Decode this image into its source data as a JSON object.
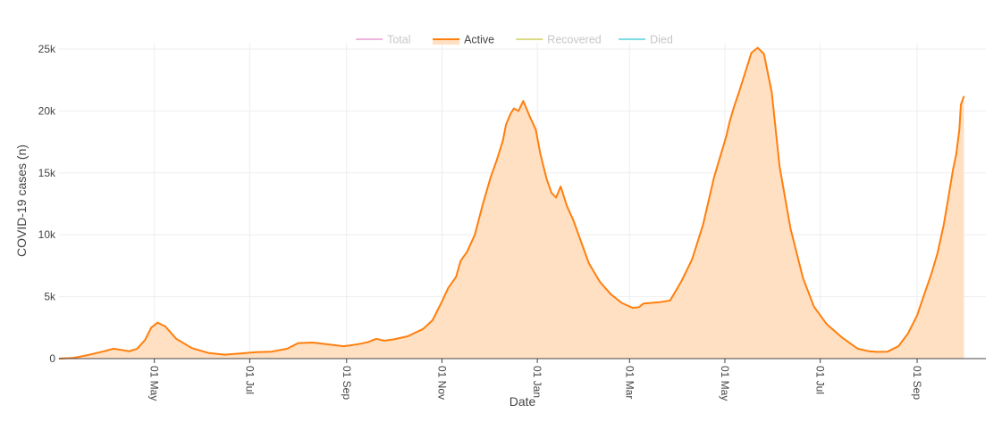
{
  "chart_data": {
    "type": "area",
    "xlabel": "Date",
    "ylabel": "COVID-19 cases (n)",
    "legend_position": "top-center",
    "grid": true,
    "xlim": [
      "2020-03-01",
      "2021-10-15"
    ],
    "ylim": [
      0,
      25500
    ],
    "y_ticks": [
      {
        "value": 0,
        "label": "0"
      },
      {
        "value": 5000,
        "label": "5k"
      },
      {
        "value": 10000,
        "label": "10k"
      },
      {
        "value": 15000,
        "label": "15k"
      },
      {
        "value": 20000,
        "label": "20k"
      },
      {
        "value": 25000,
        "label": "25k"
      }
    ],
    "x_ticks": [
      {
        "date": "2020-05-01",
        "label": "01 May"
      },
      {
        "date": "2020-07-01",
        "label": "01 Jul"
      },
      {
        "date": "2020-09-01",
        "label": "01 Sep"
      },
      {
        "date": "2020-11-01",
        "label": "01 Nov"
      },
      {
        "date": "2021-01-01",
        "label": "01 Jan"
      },
      {
        "date": "2021-03-01",
        "label": "01 Mar"
      },
      {
        "date": "2021-05-01",
        "label": "01 May"
      },
      {
        "date": "2021-07-01",
        "label": "01 Jul"
      },
      {
        "date": "2021-09-01",
        "label": "01 Sep"
      }
    ],
    "legend": [
      {
        "name": "Total",
        "color": "#e377c2",
        "active": false
      },
      {
        "name": "Active",
        "color": "#ff7f0e",
        "active": true
      },
      {
        "name": "Recovered",
        "color": "#bcbd22",
        "active": false
      },
      {
        "name": "Died",
        "color": "#17becf",
        "active": false
      }
    ],
    "series": [
      {
        "name": "Active",
        "color": "#ff7f0e",
        "fill": "#ffe0c2",
        "x": [
          "2020-03-01",
          "2020-03-10",
          "2020-03-20",
          "2020-03-30",
          "2020-04-05",
          "2020-04-10",
          "2020-04-15",
          "2020-04-20",
          "2020-04-25",
          "2020-04-29",
          "2020-05-03",
          "2020-05-08",
          "2020-05-15",
          "2020-05-25",
          "2020-06-05",
          "2020-06-15",
          "2020-06-25",
          "2020-07-05",
          "2020-07-15",
          "2020-07-25",
          "2020-08-01",
          "2020-08-10",
          "2020-08-20",
          "2020-08-30",
          "2020-09-05",
          "2020-09-10",
          "2020-09-15",
          "2020-09-20",
          "2020-09-25",
          "2020-10-01",
          "2020-10-10",
          "2020-10-20",
          "2020-10-26",
          "2020-11-01",
          "2020-11-05",
          "2020-11-10",
          "2020-11-13",
          "2020-11-17",
          "2020-11-22",
          "2020-11-27",
          "2020-12-02",
          "2020-12-06",
          "2020-12-10",
          "2020-12-12",
          "2020-12-15",
          "2020-12-17",
          "2020-12-20",
          "2020-12-23",
          "2020-12-27",
          "2020-12-31",
          "2021-01-03",
          "2021-01-07",
          "2021-01-10",
          "2021-01-13",
          "2021-01-16",
          "2021-01-20",
          "2021-01-24",
          "2021-01-28",
          "2021-02-03",
          "2021-02-10",
          "2021-02-17",
          "2021-02-24",
          "2021-03-03",
          "2021-03-07",
          "2021-03-10",
          "2021-03-15",
          "2021-03-20",
          "2021-03-27",
          "2021-04-03",
          "2021-04-10",
          "2021-04-17",
          "2021-04-24",
          "2021-04-28",
          "2021-05-02",
          "2021-05-04",
          "2021-05-07",
          "2021-05-10",
          "2021-05-14",
          "2021-05-18",
          "2021-05-22",
          "2021-05-26",
          "2021-05-31",
          "2021-06-05",
          "2021-06-12",
          "2021-06-20",
          "2021-06-27",
          "2021-07-05",
          "2021-07-15",
          "2021-07-25",
          "2021-08-01",
          "2021-08-06",
          "2021-08-13",
          "2021-08-20",
          "2021-08-26",
          "2021-09-01",
          "2021-09-05",
          "2021-09-10",
          "2021-09-14",
          "2021-09-18",
          "2021-09-21",
          "2021-09-24",
          "2021-09-26",
          "2021-09-28",
          "2021-09-29",
          "2021-10-01"
        ],
        "values": [
          0,
          50,
          300,
          600,
          800,
          700,
          600,
          800,
          1500,
          2500,
          2900,
          2600,
          1600,
          850,
          450,
          320,
          420,
          520,
          560,
          800,
          1250,
          1300,
          1150,
          1000,
          1100,
          1200,
          1350,
          1600,
          1450,
          1550,
          1800,
          2400,
          3100,
          4600,
          5700,
          6600,
          7900,
          8600,
          10000,
          12400,
          14600,
          16000,
          17600,
          18900,
          19800,
          20200,
          20000,
          20800,
          19600,
          18500,
          16500,
          14500,
          13400,
          13000,
          13900,
          12300,
          11200,
          9800,
          7700,
          6200,
          5200,
          4500,
          4100,
          4150,
          4450,
          4500,
          4550,
          4700,
          6200,
          8000,
          10800,
          14600,
          16300,
          18000,
          19100,
          20400,
          21500,
          23100,
          24700,
          25100,
          24600,
          21500,
          15500,
          10500,
          6500,
          4200,
          2800,
          1700,
          800,
          600,
          550,
          560,
          1000,
          2000,
          3500,
          5000,
          6800,
          8500,
          10800,
          13000,
          15300,
          16500,
          18500,
          20500,
          21200
        ]
      },
      {
        "name": "Total",
        "color": "#e377c2",
        "values": []
      },
      {
        "name": "Recovered",
        "color": "#bcbd22",
        "values": []
      },
      {
        "name": "Died",
        "color": "#17becf",
        "values": []
      }
    ]
  }
}
